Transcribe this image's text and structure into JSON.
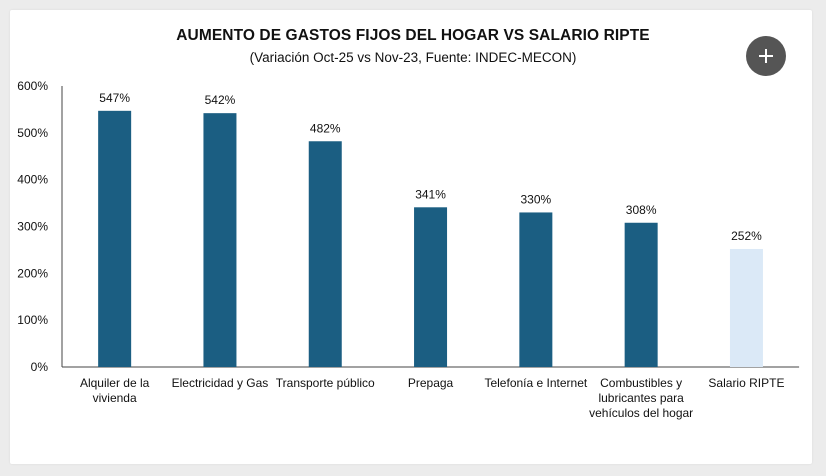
{
  "chart_data": {
    "type": "bar",
    "title": "AUMENTO DE GASTOS FIJOS DEL HOGAR VS SALARIO RIPTE",
    "subtitle": "(Variación Oct-25 vs Nov-23, Fuente: INDEC-MECON)",
    "categories": [
      [
        "Alquiler de la",
        "vivienda"
      ],
      [
        "Electricidad y Gas"
      ],
      [
        "Transporte público"
      ],
      [
        "Prepaga"
      ],
      [
        "Telefonía e Internet"
      ],
      [
        "Combustibles y",
        "lubricantes para",
        "vehículos del hogar"
      ],
      [
        "Salario RIPTE"
      ]
    ],
    "values": [
      547,
      542,
      482,
      341,
      330,
      308,
      252
    ],
    "data_labels": [
      "547%",
      "542%",
      "482%",
      "341%",
      "330%",
      "308%",
      "252%"
    ],
    "ylim": [
      0,
      600
    ],
    "yticks": [
      0,
      100,
      200,
      300,
      400,
      500,
      600
    ],
    "ytick_labels": [
      "0%",
      "100%",
      "200%",
      "300%",
      "400%",
      "500%",
      "600%"
    ],
    "xlabel": "",
    "ylabel": "",
    "grid": false,
    "colors": {
      "primary": "#1b5e82",
      "highlight": "#dbe9f7",
      "axis": "#444444"
    },
    "highlight_index": 6
  },
  "controls": {
    "add_icon": "plus-icon"
  }
}
